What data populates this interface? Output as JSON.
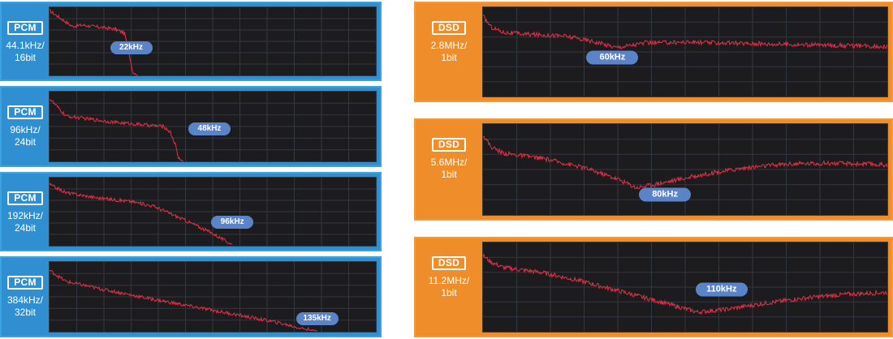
{
  "chart_data": [
    {
      "type": "line",
      "format": "PCM",
      "sample_rate": "44.1kHz/",
      "bit_depth": "16bit",
      "annotation": "22kHz",
      "x": [
        0,
        0.07,
        0.1,
        0.13,
        0.17,
        0.2,
        0.23,
        0.245,
        0.255,
        0.27
      ],
      "y": [
        0.95,
        0.72,
        0.74,
        0.72,
        0.7,
        0.68,
        0.62,
        0.3,
        0.05,
        0
      ]
    },
    {
      "type": "line",
      "format": "PCM",
      "sample_rate": "96kHz/",
      "bit_depth": "24bit",
      "annotation": "48kHz",
      "x": [
        0,
        0.05,
        0.1,
        0.2,
        0.3,
        0.35,
        0.37,
        0.385,
        0.395,
        0.41
      ],
      "y": [
        0.9,
        0.65,
        0.62,
        0.56,
        0.52,
        0.5,
        0.42,
        0.25,
        0.05,
        0
      ]
    },
    {
      "type": "line",
      "format": "PCM",
      "sample_rate": "192kHz/",
      "bit_depth": "24bit",
      "annotation": "96kHz",
      "x": [
        0,
        0.05,
        0.15,
        0.25,
        0.32,
        0.38,
        0.44,
        0.5,
        0.54,
        0.56
      ],
      "y": [
        0.9,
        0.78,
        0.7,
        0.65,
        0.58,
        0.45,
        0.32,
        0.18,
        0.07,
        0.02
      ]
    },
    {
      "type": "line",
      "format": "PCM",
      "sample_rate": "384kHz/",
      "bit_depth": "32bit",
      "annotation": "135kHz",
      "x": [
        0,
        0.05,
        0.15,
        0.3,
        0.45,
        0.6,
        0.7,
        0.77,
        0.82
      ],
      "y": [
        0.88,
        0.72,
        0.62,
        0.48,
        0.35,
        0.22,
        0.13,
        0.05,
        0.01
      ]
    },
    {
      "type": "line",
      "format": "DSD",
      "sample_rate": "2.8MHz/",
      "bit_depth": "1bit",
      "annotation": "60kHz",
      "x": [
        0,
        0.02,
        0.05,
        0.1,
        0.2,
        0.27,
        0.33,
        0.4,
        0.5,
        0.6,
        0.7,
        0.8,
        0.9,
        1
      ],
      "y": [
        0.9,
        0.78,
        0.72,
        0.7,
        0.68,
        0.62,
        0.55,
        0.6,
        0.61,
        0.6,
        0.59,
        0.58,
        0.57,
        0.56
      ]
    },
    {
      "type": "line",
      "format": "DSD",
      "sample_rate": "5.6MHz/",
      "bit_depth": "1bit",
      "annotation": "80kHz",
      "x": [
        0,
        0.02,
        0.05,
        0.15,
        0.25,
        0.33,
        0.38,
        0.45,
        0.55,
        0.65,
        0.75,
        0.85,
        0.95,
        1
      ],
      "y": [
        0.88,
        0.75,
        0.68,
        0.62,
        0.52,
        0.4,
        0.3,
        0.36,
        0.45,
        0.52,
        0.56,
        0.57,
        0.56,
        0.55
      ]
    },
    {
      "type": "line",
      "format": "DSD",
      "sample_rate": "11.2MHz/",
      "bit_depth": "1bit",
      "annotation": "110kHz",
      "x": [
        0,
        0.02,
        0.05,
        0.15,
        0.25,
        0.35,
        0.45,
        0.53,
        0.6,
        0.7,
        0.8,
        0.9,
        1
      ],
      "y": [
        0.85,
        0.78,
        0.72,
        0.66,
        0.56,
        0.44,
        0.32,
        0.22,
        0.25,
        0.32,
        0.38,
        0.42,
        0.44
      ]
    }
  ],
  "colors": {
    "trace": "#e5304a",
    "grid": "#333740",
    "plot_bg": "#1c1c1e",
    "pcm_panel": "#2f8fd0",
    "dsd_panel": "#ef8d2a",
    "pill": "#5b84c8"
  }
}
